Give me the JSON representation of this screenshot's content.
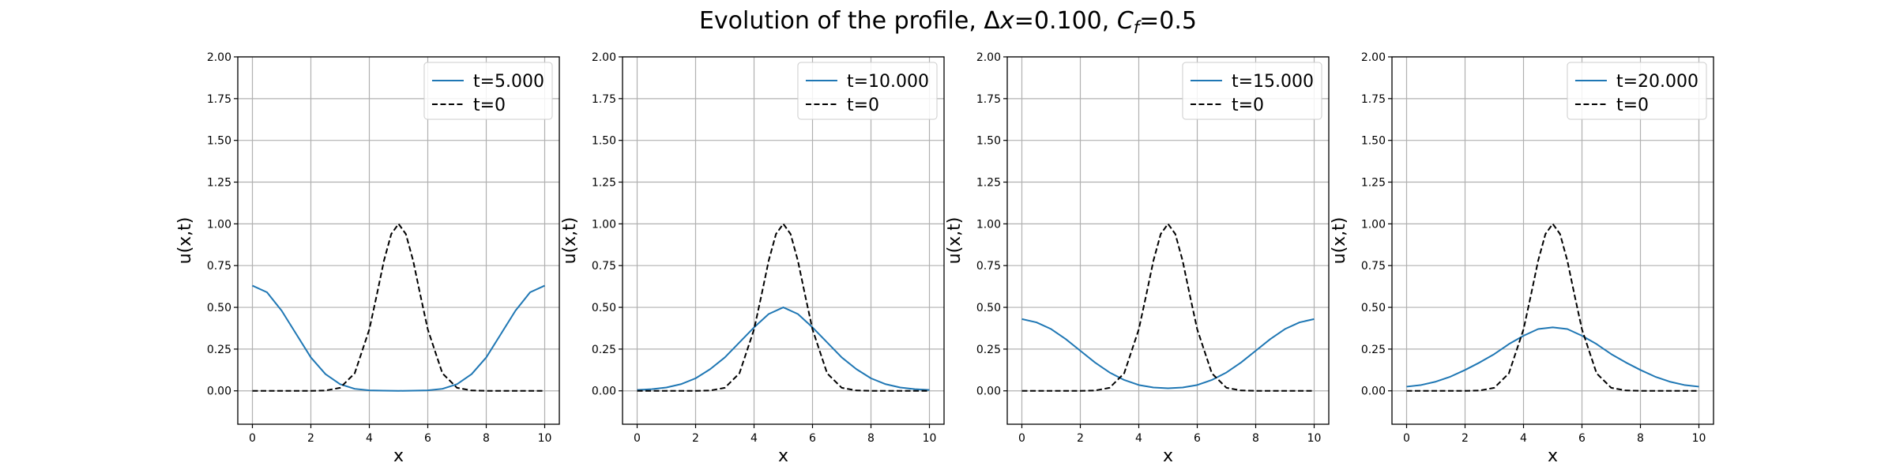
{
  "figure": {
    "title_prefix": "Evolution of the profile, ",
    "delta_symbol": "Δ",
    "dx_var": "x",
    "dx_value": "=0.100, ",
    "cf_var": "C",
    "cf_sub": "f",
    "cf_value": "=0.5"
  },
  "chart_data": [
    {
      "type": "line",
      "xlabel": "x",
      "ylabel": "u(x,t)",
      "xlim": [
        -0.5,
        10.5
      ],
      "ylim": [
        -0.2,
        2.0
      ],
      "xticks": [
        0,
        2,
        4,
        6,
        8,
        10
      ],
      "yticks": [
        0.0,
        0.25,
        0.5,
        0.75,
        1.0,
        1.25,
        1.5,
        1.75,
        2.0
      ],
      "xtick_labels": [
        "0",
        "2",
        "4",
        "6",
        "8",
        "10"
      ],
      "ytick_labels": [
        "0.00",
        "0.25",
        "0.50",
        "0.75",
        "1.00",
        "1.25",
        "1.50",
        "1.75",
        "2.00"
      ],
      "grid": true,
      "legend": "top-right",
      "series": [
        {
          "name": "t=5.000",
          "color": "#1f77b4",
          "style": "solid",
          "x": [
            0,
            0.5,
            1,
            1.5,
            2,
            2.5,
            3,
            3.5,
            4,
            4.5,
            5,
            5.5,
            6,
            6.5,
            7,
            7.5,
            8,
            8.5,
            9,
            9.5,
            10
          ],
          "y": [
            0.63,
            0.59,
            0.48,
            0.34,
            0.2,
            0.1,
            0.04,
            0.012,
            0.003,
            0.001,
            0.0,
            0.001,
            0.003,
            0.012,
            0.04,
            0.1,
            0.2,
            0.34,
            0.48,
            0.59,
            0.63
          ]
        },
        {
          "name": "t=0",
          "color": "#000000",
          "style": "dashed",
          "x": [
            0,
            1,
            2,
            2.5,
            3,
            3.5,
            4,
            4.25,
            4.5,
            4.75,
            5,
            5.25,
            5.5,
            5.75,
            6,
            6.5,
            7,
            7.5,
            8,
            9,
            10
          ],
          "y": [
            0.0,
            0.0,
            0.0,
            0.002,
            0.018,
            0.105,
            0.368,
            0.57,
            0.779,
            0.939,
            1.0,
            0.939,
            0.779,
            0.57,
            0.368,
            0.105,
            0.018,
            0.002,
            0.0,
            0.0,
            0.0
          ]
        }
      ]
    },
    {
      "type": "line",
      "xlabel": "x",
      "ylabel": "u(x,t)",
      "xlim": [
        -0.5,
        10.5
      ],
      "ylim": [
        -0.2,
        2.0
      ],
      "xticks": [
        0,
        2,
        4,
        6,
        8,
        10
      ],
      "yticks": [
        0.0,
        0.25,
        0.5,
        0.75,
        1.0,
        1.25,
        1.5,
        1.75,
        2.0
      ],
      "xtick_labels": [
        "0",
        "2",
        "4",
        "6",
        "8",
        "10"
      ],
      "ytick_labels": [
        "0.00",
        "0.25",
        "0.50",
        "0.75",
        "1.00",
        "1.25",
        "1.50",
        "1.75",
        "2.00"
      ],
      "grid": true,
      "legend": "top-right",
      "series": [
        {
          "name": "t=10.000",
          "color": "#1f77b4",
          "style": "solid",
          "x": [
            0,
            0.5,
            1,
            1.5,
            2,
            2.5,
            3,
            3.5,
            4,
            4.5,
            5,
            5.5,
            6,
            6.5,
            7,
            7.5,
            8,
            8.5,
            9,
            9.5,
            10
          ],
          "y": [
            0.005,
            0.01,
            0.02,
            0.04,
            0.075,
            0.13,
            0.2,
            0.29,
            0.38,
            0.46,
            0.5,
            0.46,
            0.38,
            0.29,
            0.2,
            0.13,
            0.075,
            0.04,
            0.02,
            0.01,
            0.005
          ]
        },
        {
          "name": "t=0",
          "color": "#000000",
          "style": "dashed",
          "x": [
            0,
            1,
            2,
            2.5,
            3,
            3.5,
            4,
            4.25,
            4.5,
            4.75,
            5,
            5.25,
            5.5,
            5.75,
            6,
            6.5,
            7,
            7.5,
            8,
            9,
            10
          ],
          "y": [
            0.0,
            0.0,
            0.0,
            0.002,
            0.018,
            0.105,
            0.368,
            0.57,
            0.779,
            0.939,
            1.0,
            0.939,
            0.779,
            0.57,
            0.368,
            0.105,
            0.018,
            0.002,
            0.0,
            0.0,
            0.0
          ]
        }
      ]
    },
    {
      "type": "line",
      "xlabel": "x",
      "ylabel": "u(x,t)",
      "xlim": [
        -0.5,
        10.5
      ],
      "ylim": [
        -0.2,
        2.0
      ],
      "xticks": [
        0,
        2,
        4,
        6,
        8,
        10
      ],
      "yticks": [
        0.0,
        0.25,
        0.5,
        0.75,
        1.0,
        1.25,
        1.5,
        1.75,
        2.0
      ],
      "xtick_labels": [
        "0",
        "2",
        "4",
        "6",
        "8",
        "10"
      ],
      "ytick_labels": [
        "0.00",
        "0.25",
        "0.50",
        "0.75",
        "1.00",
        "1.25",
        "1.50",
        "1.75",
        "2.00"
      ],
      "grid": true,
      "legend": "top-right",
      "series": [
        {
          "name": "t=15.000",
          "color": "#1f77b4",
          "style": "solid",
          "x": [
            0,
            0.5,
            1,
            1.5,
            2,
            2.5,
            3,
            3.5,
            4,
            4.5,
            5,
            5.5,
            6,
            6.5,
            7,
            7.5,
            8,
            8.5,
            9,
            9.5,
            10
          ],
          "y": [
            0.43,
            0.41,
            0.37,
            0.31,
            0.24,
            0.17,
            0.11,
            0.065,
            0.035,
            0.02,
            0.015,
            0.02,
            0.035,
            0.065,
            0.11,
            0.17,
            0.24,
            0.31,
            0.37,
            0.41,
            0.43
          ]
        },
        {
          "name": "t=0",
          "color": "#000000",
          "style": "dashed",
          "x": [
            0,
            1,
            2,
            2.5,
            3,
            3.5,
            4,
            4.25,
            4.5,
            4.75,
            5,
            5.25,
            5.5,
            5.75,
            6,
            6.5,
            7,
            7.5,
            8,
            9,
            10
          ],
          "y": [
            0.0,
            0.0,
            0.0,
            0.002,
            0.018,
            0.105,
            0.368,
            0.57,
            0.779,
            0.939,
            1.0,
            0.939,
            0.779,
            0.57,
            0.368,
            0.105,
            0.018,
            0.002,
            0.0,
            0.0,
            0.0
          ]
        }
      ]
    },
    {
      "type": "line",
      "xlabel": "x",
      "ylabel": "u(x,t)",
      "xlim": [
        -0.5,
        10.5
      ],
      "ylim": [
        -0.2,
        2.0
      ],
      "xticks": [
        0,
        2,
        4,
        6,
        8,
        10
      ],
      "yticks": [
        0.0,
        0.25,
        0.5,
        0.75,
        1.0,
        1.25,
        1.5,
        1.75,
        2.0
      ],
      "xtick_labels": [
        "0",
        "2",
        "4",
        "6",
        "8",
        "10"
      ],
      "ytick_labels": [
        "0.00",
        "0.25",
        "0.50",
        "0.75",
        "1.00",
        "1.25",
        "1.50",
        "1.75",
        "2.00"
      ],
      "grid": true,
      "legend": "top-right",
      "series": [
        {
          "name": "t=20.000",
          "color": "#1f77b4",
          "style": "solid",
          "x": [
            0,
            0.5,
            1,
            1.5,
            2,
            2.5,
            3,
            3.5,
            4,
            4.5,
            5,
            5.5,
            6,
            6.5,
            7,
            7.5,
            8,
            8.5,
            9,
            9.5,
            10
          ],
          "y": [
            0.025,
            0.035,
            0.055,
            0.085,
            0.125,
            0.17,
            0.22,
            0.28,
            0.33,
            0.37,
            0.38,
            0.37,
            0.33,
            0.28,
            0.22,
            0.17,
            0.125,
            0.085,
            0.055,
            0.035,
            0.025
          ]
        },
        {
          "name": "t=0",
          "color": "#000000",
          "style": "dashed",
          "x": [
            0,
            1,
            2,
            2.5,
            3,
            3.5,
            4,
            4.25,
            4.5,
            4.75,
            5,
            5.25,
            5.5,
            5.75,
            6,
            6.5,
            7,
            7.5,
            8,
            9,
            10
          ],
          "y": [
            0.0,
            0.0,
            0.0,
            0.002,
            0.018,
            0.105,
            0.368,
            0.57,
            0.779,
            0.939,
            1.0,
            0.939,
            0.779,
            0.57,
            0.368,
            0.105,
            0.018,
            0.002,
            0.0,
            0.0,
            0.0
          ]
        }
      ]
    }
  ]
}
